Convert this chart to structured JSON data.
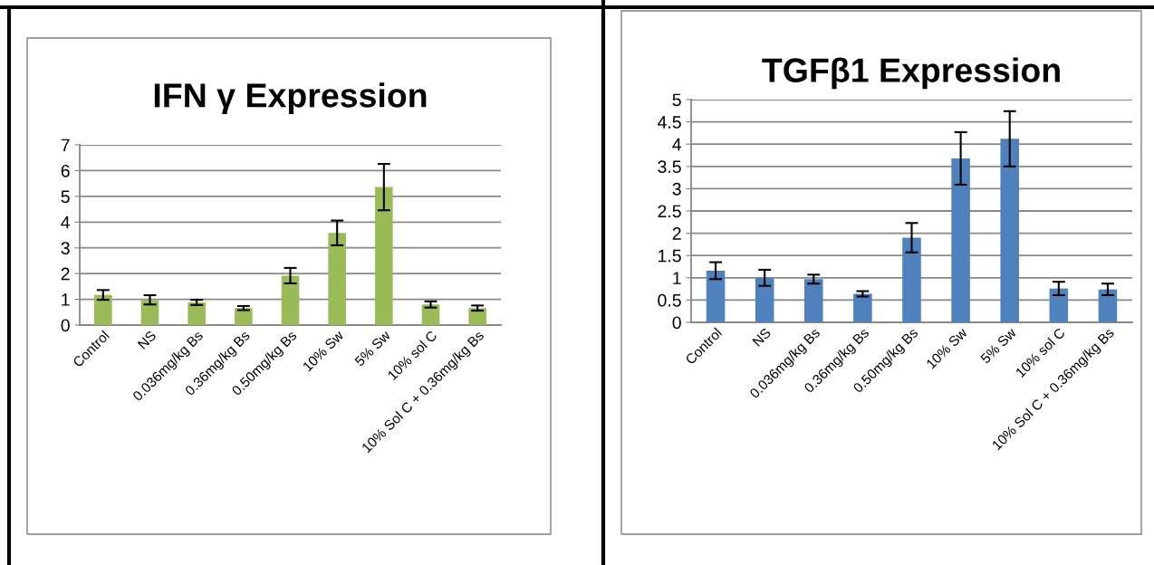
{
  "chart_data": [
    {
      "type": "bar",
      "title": "IFN γ Expression",
      "categories": [
        "Control",
        "NS",
        "0.036mg/kg Bs",
        "0.36mg/kg Bs",
        "0.50mg/kg Bs",
        "10% Sw",
        "5% Sw",
        "10% sol C",
        "10% Sol C + 0.36mg/kg Bs"
      ],
      "values": [
        1.17,
        0.98,
        0.88,
        0.66,
        1.92,
        3.58,
        5.36,
        0.8,
        0.66
      ],
      "errors": [
        0.19,
        0.18,
        0.1,
        0.08,
        0.3,
        0.48,
        0.9,
        0.12,
        0.1
      ],
      "color": "#9bbb59",
      "ylim": [
        0,
        7
      ],
      "yticks": [
        0,
        1,
        2,
        3,
        4,
        5,
        6,
        7
      ],
      "grid": "y",
      "legend": false
    },
    {
      "type": "bar",
      "title": "TGFβ1 Expression",
      "categories": [
        "Control",
        "NS",
        "0.036mg/kg Bs",
        "0.36mg/kg Bs",
        "0.50mg/kg Bs",
        "10% Sw",
        "5% Sw",
        "10% sol C",
        "10% Sol C + 0.36mg/kg Bs"
      ],
      "values": [
        1.16,
        1.0,
        0.97,
        0.64,
        1.9,
        3.68,
        4.12,
        0.76,
        0.74
      ],
      "errors": [
        0.19,
        0.18,
        0.1,
        0.06,
        0.33,
        0.59,
        0.62,
        0.15,
        0.13
      ],
      "color": "#4f81bd",
      "ylim": [
        0,
        5
      ],
      "yticks": [
        0,
        0.5,
        1,
        1.5,
        2,
        2.5,
        3,
        3.5,
        4,
        4.5,
        5
      ],
      "grid": "y",
      "legend": false
    }
  ]
}
